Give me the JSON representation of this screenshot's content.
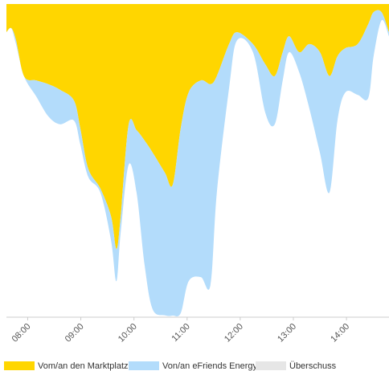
{
  "chart_data": {
    "type": "area",
    "stacked": true,
    "inverted": true,
    "x": [
      7.6,
      7.69,
      7.78,
      7.93,
      8.16,
      8.39,
      8.61,
      8.87,
      8.99,
      9.14,
      9.37,
      9.57,
      9.67,
      9.75,
      9.9,
      10.05,
      10.2,
      10.35,
      10.58,
      10.73,
      10.88,
      11.03,
      11.26,
      11.44,
      11.56,
      11.79,
      11.94,
      12.24,
      12.47,
      12.65,
      12.8,
      12.92,
      13.11,
      13.3,
      13.5,
      13.68,
      13.83,
      13.98,
      14.21,
      14.41,
      14.51,
      14.66,
      14.8
    ],
    "series": [
      {
        "name": "Vom/an den Marktplatz",
        "color": "#ffd600",
        "values": [
          9,
          7.7,
          11.5,
          23,
          24.4,
          25.6,
          27.4,
          30.8,
          39.7,
          52.6,
          59,
          67.9,
          78.2,
          67.9,
          38.5,
          40.3,
          43.6,
          47.4,
          53.8,
          57.7,
          39.7,
          28.2,
          24.4,
          25.6,
          23,
          12.8,
          9,
          12.8,
          19.2,
          23,
          15.4,
          10.3,
          15.4,
          12.8,
          15.4,
          23,
          16.7,
          14.1,
          12.8,
          6.4,
          2.6,
          2.6,
          9
        ]
      },
      {
        "name": "Von/an eFriends Energy",
        "color": "#b3dcfb",
        "values": [
          0,
          0,
          1.3,
          0,
          5.1,
          10.3,
          11,
          6.4,
          5.1,
          2.6,
          1.3,
          7.7,
          10.3,
          5.1,
          12.8,
          20,
          39.7,
          50,
          45.6,
          41.8,
          59,
          60.3,
          62.8,
          64.1,
          37.2,
          14.1,
          2.6,
          2.6,
          15.4,
          15.4,
          9,
          5.1,
          6.4,
          20.5,
          32.1,
          37.2,
          20.5,
          14.1,
          16.2,
          23.6,
          14.1,
          2.6,
          1.3
        ]
      },
      {
        "name": "Überschuss",
        "color": "#e6e6e6",
        "values": [
          0,
          0,
          0,
          0,
          0,
          0,
          0,
          0,
          0,
          0,
          0,
          0,
          0,
          0,
          0,
          0,
          0,
          0,
          0,
          0,
          0,
          0,
          0,
          0,
          0,
          0,
          0,
          0,
          0,
          0,
          0,
          0,
          0,
          0,
          0,
          0,
          0,
          0,
          0,
          0,
          0,
          0,
          0
        ]
      }
    ],
    "xlim": [
      7.6,
      14.8
    ],
    "xticks": [
      {
        "value": 8,
        "label": "08:00"
      },
      {
        "value": 9,
        "label": "09:00"
      },
      {
        "value": 10,
        "label": "10:00"
      },
      {
        "value": 11,
        "label": "11:00"
      },
      {
        "value": 12,
        "label": "12:00"
      },
      {
        "value": 13,
        "label": "13:00"
      },
      {
        "value": 14,
        "label": "14:00"
      }
    ],
    "ylim": [
      0,
      100
    ],
    "legend": "bottom"
  }
}
